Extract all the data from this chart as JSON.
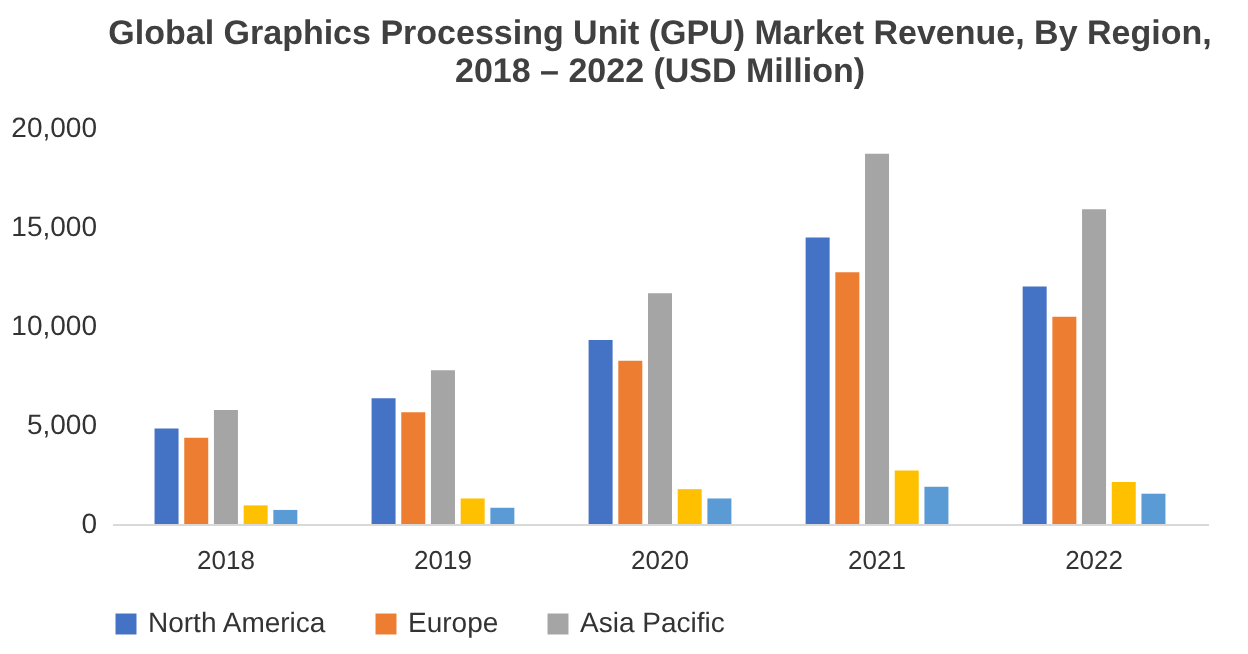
{
  "chart_data": {
    "type": "bar",
    "title": "Global Graphics Processing Unit (GPU) Market Revenue, By Region,\n2018 – 2022 (USD Million)",
    "categories": [
      "2018",
      "2019",
      "2020",
      "2021",
      "2022"
    ],
    "series": [
      {
        "name": "North America",
        "color": "#4472c4",
        "values": [
          4820,
          6350,
          9290,
          14470,
          12000
        ]
      },
      {
        "name": "Europe",
        "color": "#ed7d31",
        "values": [
          4350,
          5650,
          8240,
          12710,
          10470
        ]
      },
      {
        "name": "Asia Pacific",
        "color": "#a5a5a5",
        "values": [
          5760,
          7760,
          11650,
          18700,
          15900
        ]
      },
      {
        "color": "#ffc000",
        "values": [
          940,
          1290,
          1760,
          2700,
          2120
        ]
      },
      {
        "color": "#5b9bd5",
        "values": [
          710,
          820,
          1290,
          1880,
          1530
        ]
      }
    ],
    "ylim": [
      0,
      20000
    ],
    "yticks": [
      {
        "value": 0,
        "label": "0"
      },
      {
        "value": 5000,
        "label": "5,000"
      },
      {
        "value": 10000,
        "label": "10,000"
      },
      {
        "value": 15000,
        "label": "15,000"
      },
      {
        "value": 20000,
        "label": "20,000"
      }
    ],
    "grid": false,
    "legend": "bottom"
  }
}
